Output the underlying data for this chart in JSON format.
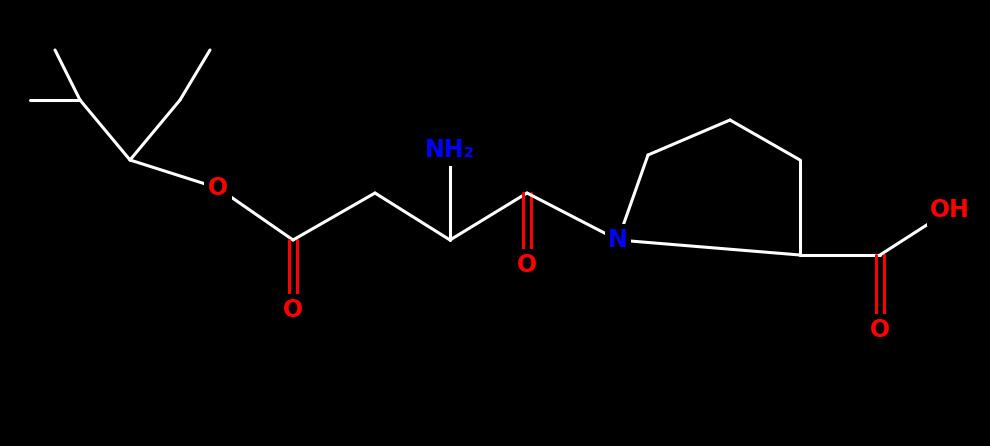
{
  "background_color": "#000000",
  "bond_color": "#ffffff",
  "atom_colors": {
    "N": "#0000ff",
    "O": "#ff0000",
    "C": "#ffffff",
    "H": "#ffffff"
  },
  "figsize": [
    9.9,
    4.46
  ],
  "dpi": 100,
  "bond_lw": 2.2,
  "font_size": 17
}
